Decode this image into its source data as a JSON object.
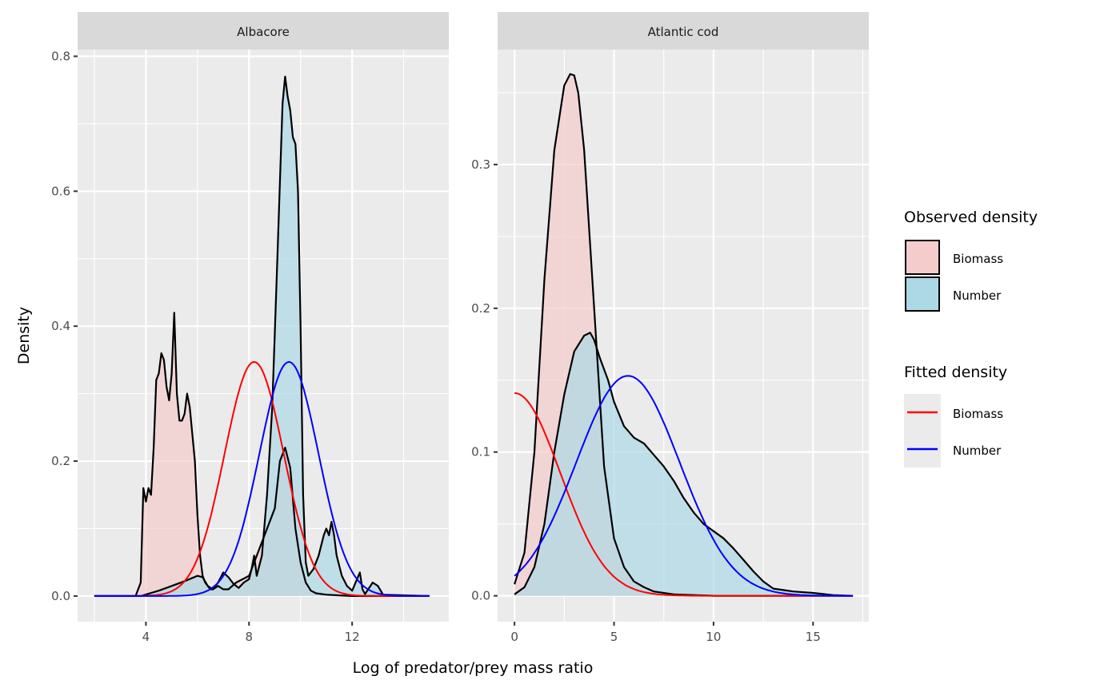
{
  "chart_data": {
    "type": "area",
    "xlabel": "Log of predator/prey mass ratio",
    "ylabel": "Density",
    "colors": {
      "biomass_fill": "#f4cccc",
      "number_fill": "#add8e6",
      "observed_outline": "#000000",
      "fitted_biomass": "#ff0000",
      "fitted_number": "#0000ff",
      "panel_bg": "#ebebeb",
      "strip_bg": "#d9d9d9",
      "grid": "#ffffff"
    },
    "legend": {
      "placement": "right",
      "observed": {
        "title": "Observed density",
        "items": [
          {
            "label": "Biomass",
            "fill": "#f4cccc"
          },
          {
            "label": "Number",
            "fill": "#add8e6"
          }
        ]
      },
      "fitted": {
        "title": "Fitted density",
        "items": [
          {
            "label": "Biomass",
            "color": "#ff0000"
          },
          {
            "label": "Number",
            "color": "#0000ff"
          }
        ]
      }
    },
    "panels": [
      {
        "title": "Albacore",
        "xlim": [
          1.35,
          15.75
        ],
        "ylim": [
          -0.038,
          0.81
        ],
        "xticks": [
          4,
          8,
          12
        ],
        "yticks": [
          0.0,
          0.2,
          0.4,
          0.6,
          0.8
        ],
        "ytick_labels": [
          "0.0",
          "0.2",
          "0.4",
          "0.6",
          "0.8"
        ],
        "observed": {
          "Biomass": {
            "x": [
              2,
              3.6,
              3.8,
              3.9,
              4.0,
              4.1,
              4.2,
              4.3,
              4.4,
              4.5,
              4.6,
              4.7,
              4.8,
              4.9,
              5.0,
              5.1,
              5.2,
              5.3,
              5.4,
              5.5,
              5.6,
              5.7,
              5.8,
              5.9,
              6.0,
              6.1,
              6.2,
              6.3,
              6.4,
              6.5,
              6.6,
              6.8,
              7.0,
              7.2,
              7.5,
              8.0,
              8.5,
              9.0,
              9.2,
              9.4,
              9.6,
              9.8,
              10.0,
              10.2,
              10.4,
              10.6,
              11.0,
              11.5,
              12.0,
              13.0,
              15
            ],
            "y": [
              0,
              0,
              0.02,
              0.16,
              0.14,
              0.16,
              0.15,
              0.22,
              0.32,
              0.33,
              0.36,
              0.35,
              0.31,
              0.29,
              0.33,
              0.42,
              0.3,
              0.26,
              0.26,
              0.27,
              0.3,
              0.28,
              0.24,
              0.2,
              0.12,
              0.06,
              0.03,
              0.02,
              0.015,
              0.01,
              0.01,
              0.015,
              0.01,
              0.01,
              0.02,
              0.03,
              0.08,
              0.13,
              0.2,
              0.22,
              0.19,
              0.1,
              0.05,
              0.02,
              0.008,
              0.004,
              0.002,
              0.001,
              0,
              0,
              0
            ]
          },
          "Number": {
            "x": [
              2,
              3.8,
              4.5,
              5.0,
              5.5,
              6.0,
              6.2,
              6.4,
              6.6,
              6.8,
              7.0,
              7.2,
              7.4,
              7.6,
              7.8,
              8.0,
              8.1,
              8.2,
              8.3,
              8.5,
              8.7,
              8.9,
              9.1,
              9.3,
              9.4,
              9.5,
              9.6,
              9.7,
              9.8,
              9.9,
              10.0,
              10.1,
              10.2,
              10.3,
              10.5,
              10.7,
              10.9,
              11.0,
              11.1,
              11.2,
              11.3,
              11.4,
              11.6,
              11.8,
              12.0,
              12.3,
              12.4,
              12.5,
              12.8,
              13.0,
              13.2,
              15
            ],
            "y": [
              0,
              0,
              0.008,
              0.015,
              0.022,
              0.03,
              0.028,
              0.015,
              0.01,
              0.02,
              0.035,
              0.028,
              0.018,
              0.012,
              0.02,
              0.025,
              0.04,
              0.06,
              0.03,
              0.06,
              0.15,
              0.28,
              0.5,
              0.73,
              0.77,
              0.74,
              0.72,
              0.68,
              0.67,
              0.6,
              0.4,
              0.15,
              0.05,
              0.03,
              0.04,
              0.06,
              0.09,
              0.1,
              0.09,
              0.11,
              0.09,
              0.06,
              0.03,
              0.015,
              0.008,
              0.035,
              0.01,
              0.003,
              0.02,
              0.015,
              0.002,
              0
            ]
          }
        },
        "fitted": {
          "Biomass": {
            "mean": 8.2,
            "sd": 1.15,
            "peak": 0.347
          },
          "Number": {
            "mean": 9.55,
            "sd": 1.15,
            "peak": 0.347
          }
        },
        "fitted_range": [
          2,
          15
        ]
      },
      {
        "title": "Atlantic cod",
        "xlim": [
          -0.85,
          17.8
        ],
        "ylim": [
          -0.018,
          0.38
        ],
        "xticks": [
          0,
          5,
          10,
          15
        ],
        "yticks": [
          0.0,
          0.1,
          0.2,
          0.3
        ],
        "ytick_labels": [
          "0.0",
          "0.1",
          "0.2",
          "0.3"
        ],
        "observed": {
          "Biomass": {
            "x": [
              0,
              0.5,
              1.0,
              1.5,
              2.0,
              2.5,
              2.8,
              3.0,
              3.2,
              3.5,
              4.0,
              4.5,
              5.0,
              5.5,
              6.0,
              6.5,
              7.0,
              8.0,
              9.0,
              10.0,
              12.0,
              17
            ],
            "y": [
              0.008,
              0.03,
              0.1,
              0.22,
              0.31,
              0.355,
              0.363,
              0.362,
              0.35,
              0.31,
              0.2,
              0.09,
              0.04,
              0.02,
              0.01,
              0.006,
              0.003,
              0.001,
              0.0005,
              0,
              0,
              0
            ]
          },
          "Number": {
            "x": [
              0,
              0.5,
              1.0,
              1.5,
              2.0,
              2.5,
              3.0,
              3.5,
              3.8,
              4.0,
              4.3,
              4.7,
              5.0,
              5.5,
              6.0,
              6.5,
              7.0,
              7.5,
              8.0,
              8.5,
              9.0,
              9.5,
              10.0,
              10.5,
              11.0,
              11.5,
              12.0,
              12.5,
              13.0,
              13.5,
              14.0,
              15.0,
              16.0,
              17
            ],
            "y": [
              0.001,
              0.006,
              0.02,
              0.05,
              0.1,
              0.14,
              0.17,
              0.181,
              0.183,
              0.178,
              0.165,
              0.15,
              0.135,
              0.118,
              0.11,
              0.106,
              0.098,
              0.09,
              0.08,
              0.068,
              0.058,
              0.05,
              0.045,
              0.04,
              0.033,
              0.025,
              0.017,
              0.01,
              0.005,
              0.004,
              0.003,
              0.002,
              0.0005,
              0
            ]
          }
        },
        "fitted": {
          "Biomass": {
            "type": "halfnormal-like",
            "mean": 0.0,
            "sd": 2.3,
            "peak": 0.141
          },
          "Number": {
            "mean": 5.7,
            "sd": 2.6,
            "peak": 0.153
          }
        },
        "fitted_range": [
          0,
          17
        ]
      }
    ]
  }
}
